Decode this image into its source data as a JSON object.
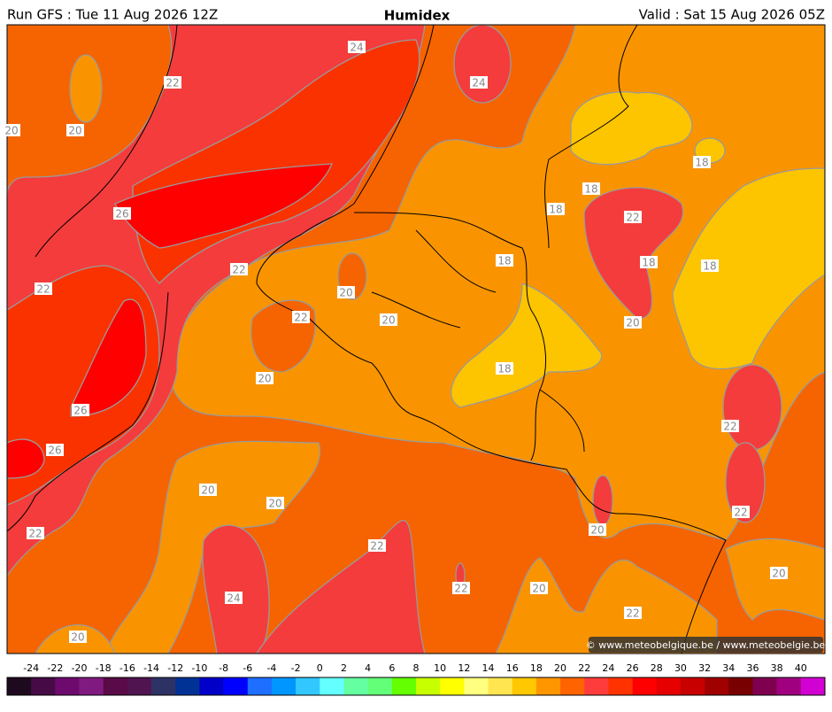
{
  "header": {
    "run": "Run GFS : Tue 11 Aug 2026 12Z",
    "title": "Humidex",
    "valid": "Valid : Sat 15 Aug 2026 05Z"
  },
  "map": {
    "contour_labels": [
      24,
      24,
      22,
      20,
      20,
      18,
      18,
      18,
      26,
      22,
      18,
      18,
      18,
      22,
      22,
      20,
      22,
      20,
      20,
      18,
      20,
      26,
      22,
      26,
      20,
      20,
      22,
      20,
      22,
      22,
      20,
      22,
      20,
      24,
      22,
      20
    ],
    "credit": "© www.meteobelgique.be / www.meteobelgie.be"
  },
  "colorbar": {
    "ticks": [
      -24,
      -22,
      -20,
      -18,
      -16,
      -14,
      -12,
      -10,
      -8,
      -6,
      -4,
      -2,
      0,
      2,
      4,
      6,
      8,
      10,
      12,
      14,
      16,
      18,
      20,
      22,
      24,
      26,
      28,
      30,
      32,
      34,
      36,
      38,
      40
    ],
    "colors": [
      "#1e0a1e",
      "#460a46",
      "#6e0a6e",
      "#801a80",
      "#5a0a46",
      "#501450",
      "#2d3264",
      "#003296",
      "#0000c8",
      "#0000ff",
      "#1e6eff",
      "#0096ff",
      "#32c8ff",
      "#64ffff",
      "#64ffa0",
      "#64ff78",
      "#64ff00",
      "#c8ff00",
      "#ffff00",
      "#ffff80",
      "#ffe650",
      "#ffc800",
      "#ff9600",
      "#ff6400",
      "#ff3c3c",
      "#ff3200",
      "#ff0000",
      "#e60000",
      "#c80000",
      "#a00000",
      "#780000",
      "#800050",
      "#a0007f",
      "#d200d2"
    ]
  }
}
